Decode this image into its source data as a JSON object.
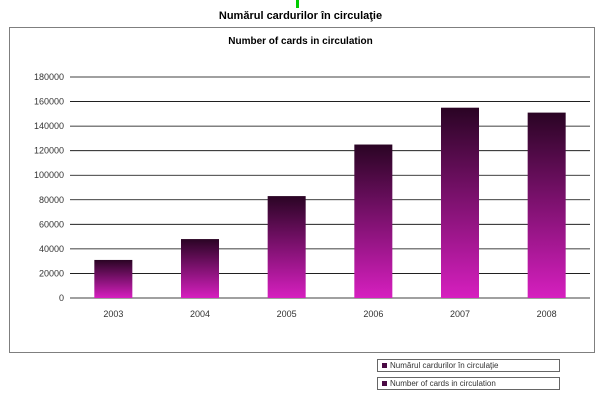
{
  "titles": {
    "ro": "Numărul cardurilor în circulaţie",
    "en": "Number of cards in circulation"
  },
  "colors": {
    "bar_top": "#2a0424",
    "bar_bottom": "#d61fbf",
    "grid": "#000000",
    "frame": "#7f7f7f"
  },
  "legend": [
    "Numărul cardurilor în circulaţie",
    "Number of cards in circulation"
  ],
  "chart_data": {
    "type": "bar",
    "title": "Number of cards in circulation",
    "categories": [
      "2003",
      "2004",
      "2005",
      "2006",
      "2007",
      "2008"
    ],
    "values": [
      31000,
      48000,
      83000,
      125000,
      155000,
      151000
    ],
    "ylim": [
      0,
      180000
    ],
    "yticks": [
      0,
      20000,
      40000,
      60000,
      80000,
      100000,
      120000,
      140000,
      160000,
      180000
    ],
    "grid": true,
    "legend_position": "bottom-right"
  }
}
